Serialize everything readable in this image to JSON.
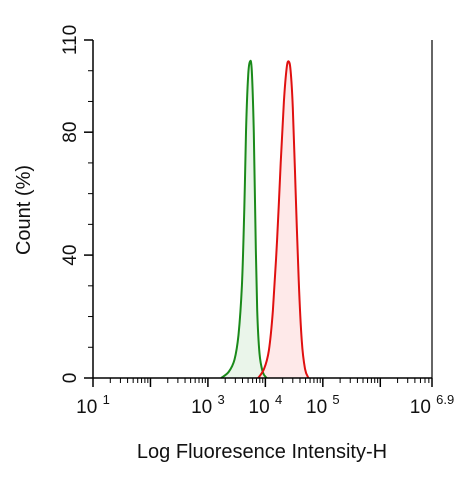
{
  "chart_data": {
    "type": "area",
    "title": "",
    "xlabel": "Log Fluoresence Intensity-H",
    "ylabel": "Count  (%)",
    "x_scale": "log",
    "xlim": [
      10,
      7943282
    ],
    "ylim": [
      0,
      110
    ],
    "x_ticks": [
      {
        "base": "10",
        "exp": "1",
        "value": 10
      },
      {
        "base": "10",
        "exp": "3",
        "value": 1000
      },
      {
        "base": "10",
        "exp": "4",
        "value": 10000
      },
      {
        "base": "10",
        "exp": "5",
        "value": 100000
      },
      {
        "base": "10",
        "exp": "6.9",
        "value": 7943282
      }
    ],
    "y_ticks": [
      0,
      40,
      80,
      110
    ],
    "grid": false,
    "legend": "none",
    "series": [
      {
        "color": "#1a8a1a",
        "fill": "#e3f1e3",
        "x": [
          1700,
          2300,
          2900,
          3400,
          3900,
          4300,
          4600,
          5000,
          5400,
          5800,
          6300,
          6700,
          7200,
          7900,
          9000,
          10500
        ],
        "y": [
          0,
          2,
          6,
          14,
          30,
          55,
          80,
          98,
          103,
          100,
          80,
          50,
          22,
          8,
          2,
          0
        ]
      },
      {
        "color": "#e01010",
        "fill": "#fde2e2",
        "x": [
          7500,
          9500,
          11500,
          13500,
          16000,
          18500,
          21000,
          23500,
          25500,
          27500,
          30000,
          33500,
          38000,
          43000,
          49000,
          56000
        ],
        "y": [
          0,
          3,
          9,
          22,
          45,
          70,
          90,
          101,
          103,
          100,
          88,
          62,
          32,
          12,
          3,
          0
        ]
      }
    ]
  }
}
